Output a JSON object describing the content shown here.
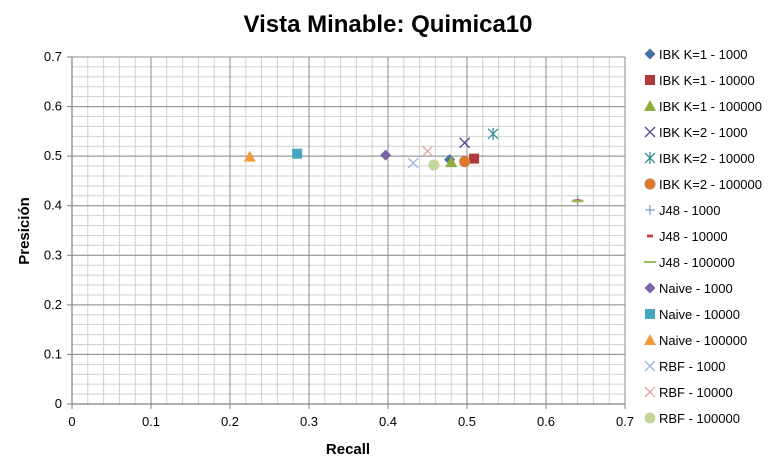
{
  "chart_data": {
    "type": "scatter",
    "title": "Vista Minable: Quimica10",
    "xlabel": "Recall",
    "ylabel": "Presición",
    "xlim": [
      0,
      0.7
    ],
    "ylim": [
      0,
      0.7
    ],
    "xticks": [
      "0",
      "0.1",
      "0.2",
      "0.3",
      "0.4",
      "0.5",
      "0.6",
      "0.7"
    ],
    "yticks": [
      "0",
      "0.1",
      "0.2",
      "0.3",
      "0.4",
      "0.5",
      "0.6",
      "0.7"
    ],
    "grid": true,
    "legend_position": "right",
    "series": [
      {
        "name": "IBK K=1 - 1000",
        "marker": "diamond",
        "color": "#4a6fa5",
        "x": 0.478,
        "y": 0.493
      },
      {
        "name": "IBK K=1 - 10000",
        "marker": "square",
        "color": "#b03a3a",
        "x": 0.509,
        "y": 0.495
      },
      {
        "name": "IBK K=1 - 100000",
        "marker": "triangle",
        "color": "#8fae3c",
        "x": 0.48,
        "y": 0.488
      },
      {
        "name": "IBK K=2 - 1000",
        "marker": "x",
        "color": "#5b4690",
        "x": 0.497,
        "y": 0.527
      },
      {
        "name": "IBK K=2 - 10000",
        "marker": "star",
        "color": "#3a8f9a",
        "x": 0.533,
        "y": 0.545
      },
      {
        "name": "IBK K=2 - 100000",
        "marker": "circle",
        "color": "#d97a2e",
        "x": 0.497,
        "y": 0.489
      },
      {
        "name": "J48 - 1000",
        "marker": "plus",
        "color": "#7f9ec8",
        "x": 0.64,
        "y": 0.411
      },
      {
        "name": "J48 - 10000",
        "marker": "dash",
        "color": "#c24a4a",
        "x": 0.64,
        "y": 0.41
      },
      {
        "name": "J48 - 100000",
        "marker": "longdash",
        "color": "#9bbb59",
        "x": 0.64,
        "y": 0.409
      },
      {
        "name": "Naive - 1000",
        "marker": "diamond",
        "color": "#7e62a8",
        "x": 0.397,
        "y": 0.502
      },
      {
        "name": "Naive - 10000",
        "marker": "square",
        "color": "#46a5bf",
        "x": 0.285,
        "y": 0.505
      },
      {
        "name": "Naive - 100000",
        "marker": "triangle",
        "color": "#f59a3e",
        "x": 0.225,
        "y": 0.499
      },
      {
        "name": "RBF - 1000",
        "marker": "x",
        "color": "#9db6e0",
        "x": 0.432,
        "y": 0.486
      },
      {
        "name": "RBF - 10000",
        "marker": "x",
        "color": "#e0a0a0",
        "x": 0.45,
        "y": 0.51
      },
      {
        "name": "RBF - 100000",
        "marker": "circle",
        "color": "#c3d69b",
        "x": 0.458,
        "y": 0.482
      }
    ]
  }
}
